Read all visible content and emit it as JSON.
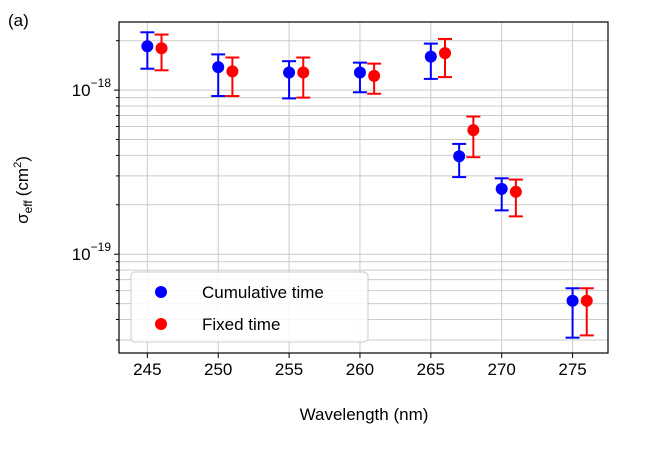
{
  "panel_label": "(a)",
  "chart_data": {
    "type": "scatter",
    "title": "",
    "xlabel": "Wavelength (nm)",
    "ylabel": {
      "symbol": "σ",
      "subscript": "eff",
      "unit": "(cm",
      "unit_sup": "2",
      "unit_close": ")"
    },
    "xlim": [
      243,
      277.5
    ],
    "ylim": [
      2.5e-20,
      2.6e-18
    ],
    "yscale": "log",
    "x_ticks": [
      245,
      250,
      255,
      260,
      265,
      270,
      275
    ],
    "x_tick_labels": [
      "245",
      "250",
      "255",
      "260",
      "265",
      "270",
      "275"
    ],
    "y_major_ticks": [
      {
        "value": 1e-18,
        "base": "10",
        "exp": "−18"
      },
      {
        "value": 1e-19,
        "base": "10",
        "exp": "−19"
      }
    ],
    "grid": true,
    "legend_position": "bottom-left",
    "series": [
      {
        "name": "Cumulative time",
        "color": "#0000ff",
        "points": [
          {
            "x": 245,
            "y": 1.85e-18,
            "ylow": 1.35e-18,
            "yhigh": 2.25e-18
          },
          {
            "x": 250,
            "y": 1.38e-18,
            "ylow": 9.2e-19,
            "yhigh": 1.65e-18
          },
          {
            "x": 255,
            "y": 1.28e-18,
            "ylow": 8.9e-19,
            "yhigh": 1.5e-18
          },
          {
            "x": 260,
            "y": 1.28e-18,
            "ylow": 9.7e-19,
            "yhigh": 1.47e-18
          },
          {
            "x": 265,
            "y": 1.6e-18,
            "ylow": 1.17e-18,
            "yhigh": 1.92e-18
          },
          {
            "x": 267,
            "y": 3.95e-19,
            "ylow": 2.95e-19,
            "yhigh": 4.7e-19
          },
          {
            "x": 270,
            "y": 2.5e-19,
            "ylow": 1.85e-19,
            "yhigh": 2.9e-19
          },
          {
            "x": 275,
            "y": 5.2e-20,
            "ylow": 3.1e-20,
            "yhigh": 6.2e-20
          }
        ]
      },
      {
        "name": "Fixed time",
        "color": "#ff0000",
        "points": [
          {
            "x": 246,
            "y": 1.8e-18,
            "ylow": 1.32e-18,
            "yhigh": 2.18e-18
          },
          {
            "x": 251,
            "y": 1.3e-18,
            "ylow": 9.2e-19,
            "yhigh": 1.58e-18
          },
          {
            "x": 256,
            "y": 1.28e-18,
            "ylow": 9e-19,
            "yhigh": 1.58e-18
          },
          {
            "x": 261,
            "y": 1.22e-18,
            "ylow": 9.5e-19,
            "yhigh": 1.45e-18
          },
          {
            "x": 266,
            "y": 1.68e-18,
            "ylow": 1.2e-18,
            "yhigh": 2.05e-18
          },
          {
            "x": 268,
            "y": 5.7e-19,
            "ylow": 3.9e-19,
            "yhigh": 6.9e-19
          },
          {
            "x": 271,
            "y": 2.4e-19,
            "ylow": 1.7e-19,
            "yhigh": 2.85e-19
          },
          {
            "x": 276,
            "y": 5.2e-20,
            "ylow": 3.2e-20,
            "yhigh": 6.2e-20
          }
        ]
      }
    ]
  }
}
